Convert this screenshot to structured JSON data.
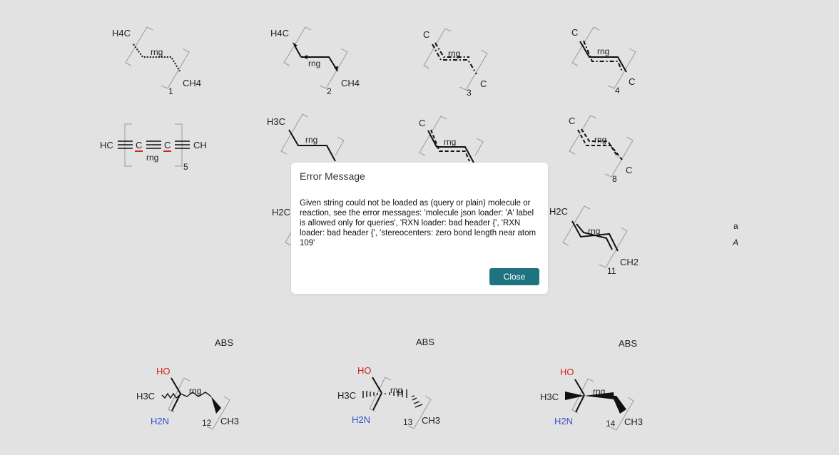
{
  "dialog": {
    "title": "Error Message",
    "message": "Given string could not be loaded as (query or plain) molecule or reaction, see the error messages: 'molecule json loader: 'A' label is allowed only for queries', 'RXN loader: bad header {', 'RXN loader: bad header {', 'stereocenters: zero bond length near atom 109'",
    "close_label": "Close"
  },
  "canvas": {
    "atoms": {
      "h4c": "H4C",
      "ch4": "CH4",
      "c": "C",
      "hc": "HC",
      "ch": "CH",
      "h3c": "H3C",
      "h2c": "H2C",
      "ch2": "CH2",
      "ch3": "CH3",
      "ho": "HO",
      "h2n": "H2N"
    },
    "ring_label": "rng",
    "abs_label": "ABS",
    "structure_numbers": [
      "1",
      "2",
      "3",
      "4",
      "5",
      "8",
      "11",
      "12",
      "13",
      "14"
    ],
    "side_labels": {
      "a": "a",
      "A": "A"
    }
  }
}
